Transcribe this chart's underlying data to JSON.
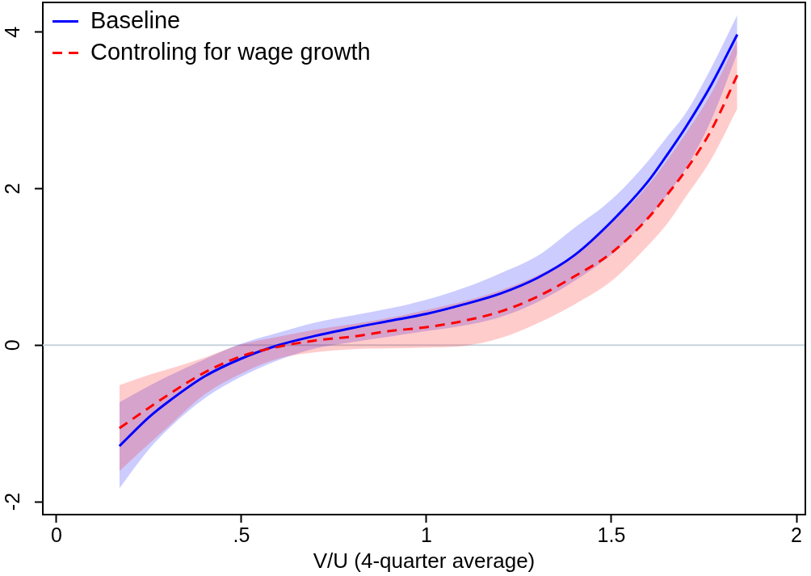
{
  "chart_data": {
    "type": "line",
    "xlabel": "V/U (4-quarter average)",
    "x": [
      0.17,
      0.25,
      0.3,
      0.4,
      0.5,
      0.6,
      0.7,
      0.8,
      0.9,
      1.0,
      1.1,
      1.2,
      1.3,
      1.4,
      1.5,
      1.6,
      1.65,
      1.7,
      1.77,
      1.84
    ],
    "xlim": [
      -0.037,
      2.024
    ],
    "xticks": [
      0,
      {
        "value": 0.5,
        "label": ".5"
      },
      1,
      1.5,
      2
    ],
    "ylim": [
      -2.165,
      4.38
    ],
    "yticks": [
      -2,
      0,
      2,
      4
    ],
    "grid": false,
    "legend": "top left",
    "marker": "none",
    "ref_lines": [
      {
        "axis": "y",
        "value": 0,
        "color": "#c6d3dc"
      }
    ],
    "series": [
      {
        "name": "Baseline",
        "color": "#0000ff",
        "line_style": "solid",
        "values": [
          -1.29,
          -0.92,
          -0.73,
          -0.4,
          -0.17,
          0.0,
          0.12,
          0.22,
          0.31,
          0.4,
          0.52,
          0.66,
          0.86,
          1.15,
          1.58,
          2.1,
          2.43,
          2.78,
          3.33,
          3.97
        ],
        "lower": [
          -1.83,
          -1.33,
          -1.08,
          -0.68,
          -0.4,
          -0.19,
          -0.04,
          0.04,
          0.11,
          0.18,
          0.25,
          0.36,
          0.55,
          0.82,
          1.16,
          1.63,
          1.92,
          2.25,
          2.88,
          3.73
        ],
        "upper": [
          -0.73,
          -0.52,
          -0.4,
          -0.18,
          0.02,
          0.16,
          0.29,
          0.38,
          0.47,
          0.58,
          0.73,
          0.92,
          1.14,
          1.5,
          1.86,
          2.36,
          2.66,
          2.96,
          3.55,
          4.22
        ]
      },
      {
        "name": "Controling for wage growth",
        "color": "#ff0000",
        "line_style": "dashed",
        "values": [
          -1.06,
          -0.8,
          -0.64,
          -0.35,
          -0.14,
          -0.02,
          0.06,
          0.11,
          0.18,
          0.23,
          0.31,
          0.43,
          0.62,
          0.88,
          1.18,
          1.63,
          1.92,
          2.23,
          2.75,
          3.45
        ],
        "lower": [
          -1.61,
          -1.26,
          -1.05,
          -0.63,
          -0.36,
          -0.17,
          -0.09,
          -0.05,
          -0.04,
          -0.03,
          -0.01,
          0.09,
          0.28,
          0.52,
          0.82,
          1.28,
          1.55,
          1.89,
          2.38,
          3.02
        ],
        "upper": [
          -0.51,
          -0.38,
          -0.31,
          -0.16,
          0.01,
          0.11,
          0.2,
          0.27,
          0.35,
          0.45,
          0.56,
          0.7,
          0.89,
          1.16,
          1.56,
          2.05,
          2.36,
          2.7,
          3.22,
          3.9
        ]
      }
    ]
  }
}
